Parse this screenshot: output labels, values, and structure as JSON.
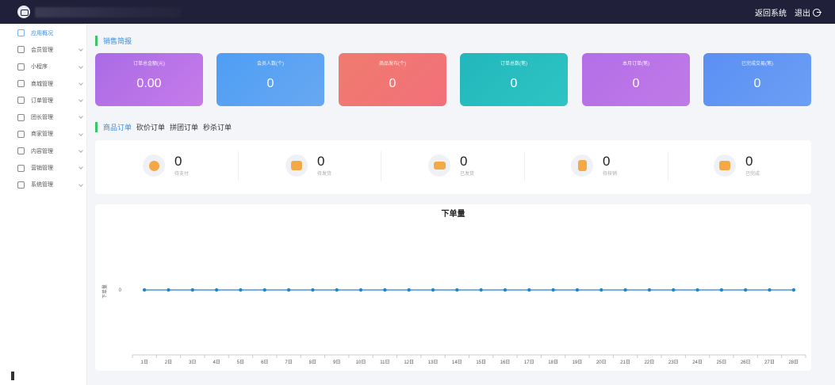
{
  "topbar": {
    "back_label": "返回系统",
    "logout_label": "退出"
  },
  "sidebar": {
    "items": [
      {
        "label": "应用概况",
        "active": true,
        "icon": "dashboard-icon"
      },
      {
        "label": "会员管理",
        "icon": "users-icon"
      },
      {
        "label": "小程序",
        "icon": "miniapp-icon"
      },
      {
        "label": "商城管理",
        "icon": "cart-icon"
      },
      {
        "label": "订单管理",
        "icon": "order-icon"
      },
      {
        "label": "团长管理",
        "icon": "leader-icon"
      },
      {
        "label": "商家管理",
        "icon": "store-icon"
      },
      {
        "label": "内容管理",
        "icon": "content-icon"
      },
      {
        "label": "营销管理",
        "icon": "marketing-icon"
      },
      {
        "label": "系统管理",
        "icon": "gear-icon"
      }
    ]
  },
  "sales": {
    "title": "销售简报",
    "cards": [
      {
        "label": "订单总金额(元)",
        "value": "0.00",
        "color_from": "#a96be6",
        "color_to": "#c77be8"
      },
      {
        "label": "会员人数(个)",
        "value": "0",
        "color_from": "#4e9ef4",
        "color_to": "#68a8f2"
      },
      {
        "label": "商品发布(个)",
        "value": "0",
        "color_from": "#f07b6e",
        "color_to": "#f2707a"
      },
      {
        "label": "订单总数(笔)",
        "value": "0",
        "color_from": "#22b7bb",
        "color_to": "#2ec4c4"
      },
      {
        "label": "本月订单(笔)",
        "value": "0",
        "color_from": "#b46ee8",
        "color_to": "#c07ae6"
      },
      {
        "label": "已完成交易(笔)",
        "value": "0",
        "color_from": "#5b8ff3",
        "color_to": "#6b9ff5"
      }
    ]
  },
  "orders": {
    "tabs": [
      {
        "label": "商品订单",
        "active": true
      },
      {
        "label": "砍价订单"
      },
      {
        "label": "拼团订单"
      },
      {
        "label": "秒杀订单"
      }
    ],
    "stats": [
      {
        "value": "0",
        "label": "待支付",
        "icon": "yen-coin-icon"
      },
      {
        "value": "0",
        "label": "待发货",
        "icon": "delivery-box-icon"
      },
      {
        "label": "已发货",
        "value": "0",
        "icon": "truck-icon"
      },
      {
        "label": "待核销",
        "value": "0",
        "icon": "document-check-icon"
      },
      {
        "label": "已完成",
        "value": "0",
        "icon": "package-icon"
      }
    ]
  },
  "chart_data": {
    "type": "line",
    "title": "下单量",
    "ylabel": "下单量",
    "categories": [
      "1日",
      "2日",
      "3日",
      "4日",
      "5日",
      "6日",
      "7日",
      "8日",
      "9日",
      "10日",
      "11日",
      "12日",
      "13日",
      "14日",
      "15日",
      "16日",
      "17日",
      "18日",
      "19日",
      "20日",
      "21日",
      "22日",
      "23日",
      "24日",
      "25日",
      "26日",
      "27日",
      "28日"
    ],
    "series": [
      {
        "values": [
          0,
          0,
          0,
          0,
          0,
          0,
          0,
          0,
          0,
          0,
          0,
          0,
          0,
          0,
          0,
          0,
          0,
          0,
          0,
          0,
          0,
          0,
          0,
          0,
          0,
          0,
          0,
          0
        ],
        "color": "#1f86c7"
      }
    ],
    "yticks": [
      "0"
    ],
    "grid": false
  }
}
